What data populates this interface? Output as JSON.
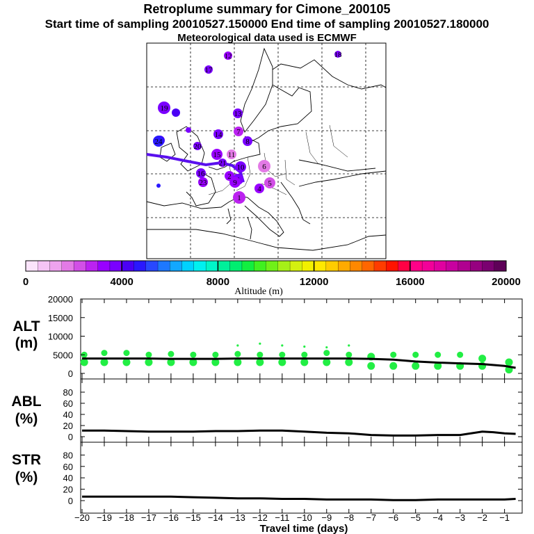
{
  "header": {
    "title": "Retroplume summary for Cimone_200105",
    "subtitle": "Start time of sampling 20010527.150000     End time of sampling 20010527.180000",
    "met": "Meteorological data used is ECMWF"
  },
  "colorbar": {
    "label": "Altitude (m)",
    "ticks": [
      "0",
      "4000",
      "8000",
      "12000",
      "16000",
      "20000"
    ],
    "colors": [
      "#fbe4fb",
      "#f5c4f5",
      "#eea3ee",
      "#e37ae6",
      "#d24fe6",
      "#bb22f0",
      "#9900ff",
      "#7a00ff",
      "#4b00f5",
      "#2a18ff",
      "#2848ff",
      "#1d78ff",
      "#12a8ff",
      "#00d2ff",
      "#00f0f0",
      "#00f5c8",
      "#00f09a",
      "#00ee70",
      "#12ee40",
      "#40f020",
      "#70f018",
      "#a6f018",
      "#d4f010",
      "#f2f000",
      "#ffe800",
      "#ffcc00",
      "#ffaa00",
      "#ff8800",
      "#ff6600",
      "#ff3c00",
      "#ff1400",
      "#ff0044",
      "#ff0088",
      "#f20099",
      "#e000a0",
      "#c800a0",
      "#b00090",
      "#960080",
      "#7a0070",
      "#5e0058"
    ]
  },
  "map": {
    "plume_points": [
      {
        "label": "1",
        "alt": 2500
      },
      {
        "label": "2",
        "alt": 3000
      },
      {
        "label": "3",
        "alt": 3500
      },
      {
        "label": "4",
        "alt": 3000
      },
      {
        "label": "5",
        "alt": 2000
      },
      {
        "label": "6",
        "alt": 1800
      },
      {
        "label": "7",
        "alt": 2600
      },
      {
        "label": "8",
        "alt": 3800
      },
      {
        "label": "9",
        "alt": 3300
      },
      {
        "label": "10",
        "alt": 3900
      },
      {
        "label": "11",
        "alt": 1500
      },
      {
        "label": "12",
        "alt": 3000
      },
      {
        "label": "13",
        "alt": 3600
      },
      {
        "label": "14",
        "alt": 3900
      },
      {
        "label": "15",
        "alt": 3200
      },
      {
        "label": "16",
        "alt": 3700
      },
      {
        "label": "17",
        "alt": 3700
      },
      {
        "label": "18",
        "alt": 3600
      },
      {
        "label": "19",
        "alt": 3600
      },
      {
        "label": "20",
        "alt": 3500
      },
      {
        "label": "21",
        "alt": 3700
      },
      {
        "label": "22",
        "alt": 4100
      },
      {
        "label": "23",
        "alt": 3400
      },
      {
        "label": "24",
        "alt": 4900
      }
    ]
  },
  "panels": {
    "alt": {
      "label_top": "ALT",
      "label_bottom": "(m)",
      "yticks": [
        "20000",
        "15000",
        "10000",
        "5000",
        "0"
      ]
    },
    "abl": {
      "label_top": "ABL",
      "label_bottom": "(%)",
      "yticks": [
        "80",
        "60",
        "40",
        "20",
        "0"
      ]
    },
    "str": {
      "label_top": "STR",
      "label_bottom": "(%)",
      "yticks": [
        "80",
        "60",
        "40",
        "20",
        "0"
      ]
    }
  },
  "xaxis": {
    "label": "Travel time (days)",
    "ticks": [
      "−20",
      "−19",
      "−18",
      "−17",
      "−16",
      "−15",
      "−14",
      "−13",
      "−12",
      "−11",
      "−10",
      "−9",
      "−8",
      "−7",
      "−6",
      "−5",
      "−4",
      "−3",
      "−2",
      "−1"
    ]
  },
  "chart_data": [
    {
      "type": "line",
      "title": "ALT",
      "ylabel": "ALT (m)",
      "xlabel": "Travel time (days)",
      "ylim": [
        0,
        20000
      ],
      "xlim": [
        -20,
        -0.3
      ],
      "x": [
        -20,
        -19,
        -18,
        -17,
        -16,
        -15,
        -14,
        -13,
        -12,
        -11,
        -10,
        -9,
        -8,
        -7,
        -6,
        -5,
        -4,
        -3,
        -2,
        -1,
        -0.5
      ],
      "series": [
        {
          "name": "mean altitude",
          "values": [
            4000,
            4000,
            4000,
            4000,
            3900,
            3900,
            3900,
            4000,
            4000,
            4000,
            4000,
            4000,
            4000,
            3900,
            3700,
            3200,
            2900,
            2700,
            2500,
            2000,
            1500
          ]
        }
      ],
      "scatter": {
        "x": [
          -19.9,
          -19.9,
          -19,
          -19,
          -18,
          -18,
          -17,
          -17,
          -16,
          -16,
          -15,
          -15,
          -14,
          -14,
          -13,
          -13,
          -13,
          -12,
          -12,
          -12,
          -11,
          -11,
          -11,
          -10,
          -10,
          -10,
          -9,
          -9,
          -9,
          -8,
          -8,
          -8,
          -7,
          -7,
          -6,
          -6,
          -5,
          -5,
          -4,
          -4,
          -3,
          -3,
          -2,
          -2,
          -0.8,
          -0.8
        ],
        "y": [
          5000,
          3000,
          5500,
          3000,
          5500,
          3000,
          5000,
          3000,
          5200,
          3000,
          5000,
          3000,
          5000,
          3000,
          5200,
          3000,
          7500,
          5000,
          3000,
          8000,
          5000,
          3000,
          7500,
          5000,
          3000,
          7200,
          5500,
          3000,
          7000,
          5000,
          3000,
          7500,
          4500,
          2000,
          5000,
          2000,
          5000,
          2000,
          5000,
          2000,
          5000,
          2000,
          4000,
          2000,
          3000,
          1000
        ]
      }
    },
    {
      "type": "line",
      "title": "ABL",
      "ylabel": "ABL (%)",
      "xlabel": "Travel time (days)",
      "ylim": [
        0,
        100
      ],
      "xlim": [
        -20,
        -0.3
      ],
      "x": [
        -20,
        -19,
        -18,
        -17,
        -16,
        -15,
        -14,
        -13,
        -12,
        -11,
        -10,
        -9,
        -8,
        -7,
        -6,
        -5,
        -4,
        -3,
        -2,
        -1.5,
        -1,
        -0.5
      ],
      "series": [
        {
          "name": "ABL",
          "values": [
            11,
            11,
            10,
            9,
            9,
            9,
            10,
            10,
            11,
            11,
            9,
            7,
            6,
            3,
            2,
            2,
            3,
            3,
            9,
            8,
            6,
            5
          ]
        }
      ]
    },
    {
      "type": "line",
      "title": "STR",
      "ylabel": "STR (%)",
      "xlabel": "Travel time (days)",
      "ylim": [
        0,
        100
      ],
      "xlim": [
        -20,
        -0.3
      ],
      "x": [
        -20,
        -19,
        -18,
        -17,
        -16,
        -15,
        -14,
        -13,
        -12,
        -11,
        -10,
        -9,
        -8,
        -7,
        -6,
        -5,
        -4,
        -3,
        -2,
        -1,
        -0.5
      ],
      "series": [
        {
          "name": "STR",
          "values": [
            7,
            7,
            7,
            7,
            7,
            6,
            5,
            4,
            4,
            3,
            3,
            2,
            2,
            2,
            1,
            1,
            2,
            2,
            2,
            2,
            3
          ]
        }
      ]
    }
  ]
}
